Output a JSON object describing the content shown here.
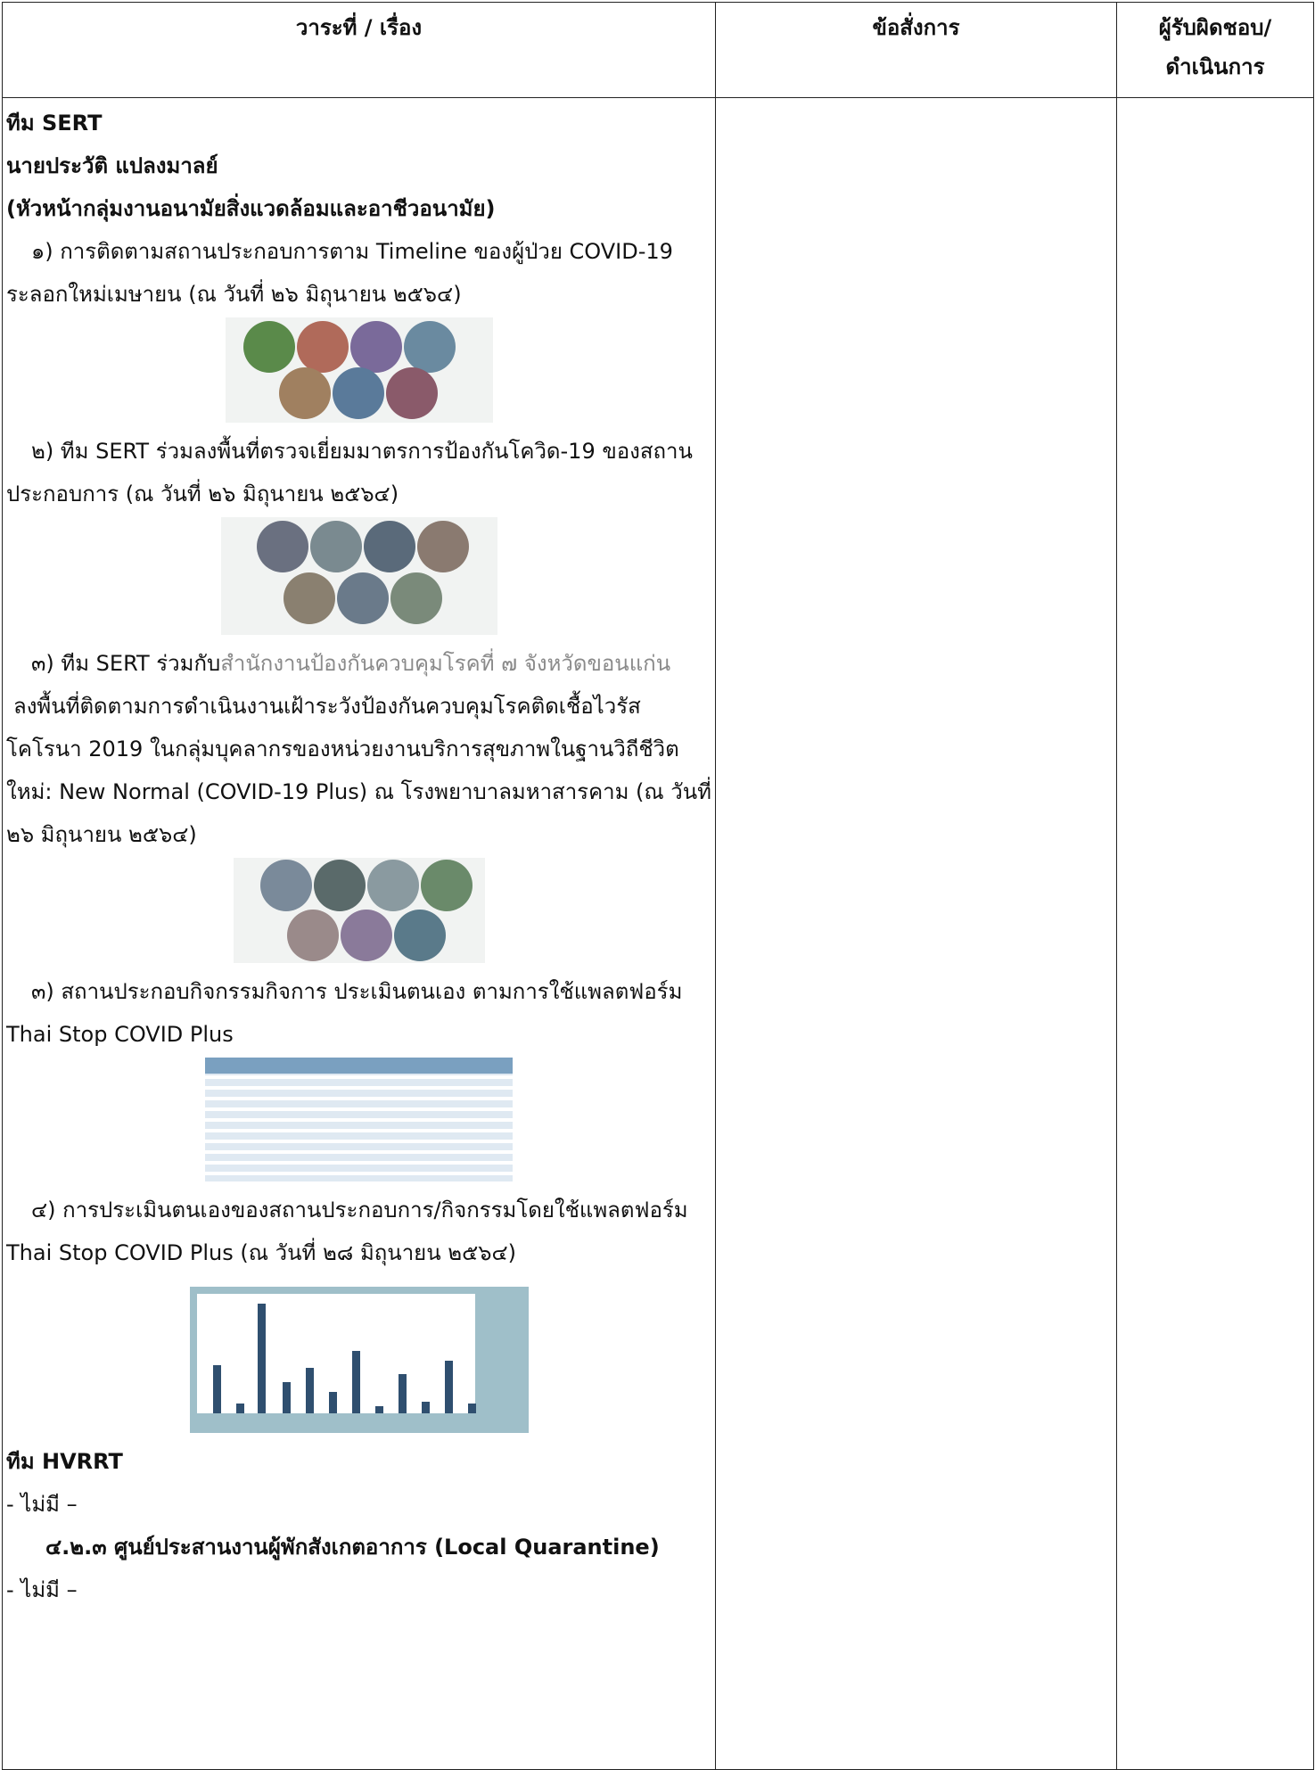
{
  "header": {
    "columns": [
      "วาระที่ / เรื่อง",
      "ข้อสั่งการ",
      [
        "ผู้รับผิดชอบ/",
        "ดำเนินการ"
      ]
    ]
  },
  "body": {
    "team": "ทีม SERT",
    "person": "นายประวัติ แปลงมาลย์",
    "position": "(หัวหน้ากลุ่มงานอนามัยสิ่งแวดล้อมและอาชีวอนามัย)",
    "items": [
      {
        "text": "๑) การติดตามสถานประกอบการตาม Timeline ของผู้ป่วย COVID-19 ระลอกใหม่เมษายน (ณ วันที่ ๒๖ มิถุนายน ๒๕๖๔)"
      },
      {
        "text": "๒) ทีม SERT ร่วมลงพื้นที่ตรวจเยี่ยมมาตรการป้องกันโควิด-19 ของสถานประกอบการ (ณ วันที่ ๒๖ มิถุนายน ๒๕๖๔)"
      },
      {
        "before": "๓) ทีม SERT ร่วมกับ",
        "highlight": "สำนักงานป้องกันควบคุมโรคที่ ๗ จังหวัดขอนแก่น",
        "after": "ลงพื้นที่ติดตามการดำเนินงานเฝ้าระวังป้องกันควบคุมโรคติดเชื้อไวรัสโคโรนา 2019 ในกลุ่มบุคลากรของหน่วยงานบริการสุขภาพในฐานวิถีชีวิตใหม่: New Normal (COVID-19 Plus) ณ โรงพยาบาลมหาสารคาม  (ณ วันที่ ๒๖ มิถุนายน ๒๕๖๔)"
      },
      {
        "text": "๓) สถานประกอบกิจกรรมกิจการ ประเมินตนเอง ตามการใช้แพลตฟอร์ม Thai Stop COVID Plus"
      },
      {
        "text": "๔) การประเมินตนเองของสถานประกอบการ/กิจกรรมโดยใช้แพลตฟอร์ม Thai Stop COVID Plus (ณ วันที่ ๒๘ มิถุนายน ๒๕๖๔)"
      }
    ],
    "team2": "ทีม HVRRT",
    "none1": "- ไม่มี –",
    "section": "๔.๒.๓ ศูนย์ประสานงานผู้พักสังเกตอาการ (Local Quarantine)",
    "none2": "- ไม่มี –"
  }
}
